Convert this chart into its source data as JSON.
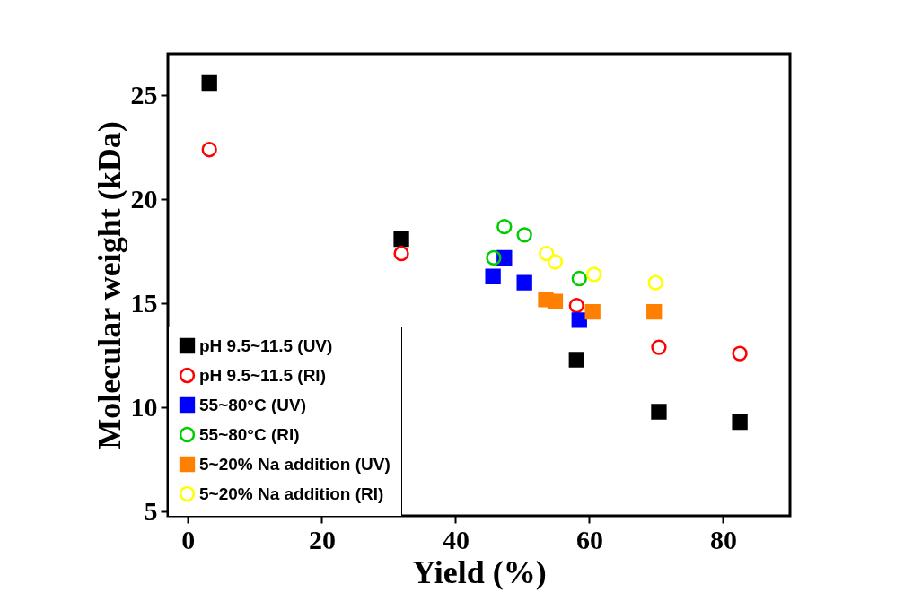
{
  "chart_data": {
    "type": "scatter",
    "xlabel": "Yield (%)",
    "ylabel": "Molecular weight (kDa)",
    "xlim": [
      -3,
      90
    ],
    "ylim": [
      4.8,
      27
    ],
    "xticks": [
      0,
      20,
      40,
      60,
      80
    ],
    "yticks": [
      5,
      10,
      15,
      20,
      25
    ],
    "grid": false,
    "legend": "bottom left",
    "series": [
      {
        "name": "pH 9.5~11.5 (UV)",
        "color": "#000000",
        "marker": "square",
        "x": [
          3.2,
          31.9,
          58.1,
          70.4,
          82.5
        ],
        "values": [
          25.6,
          18.1,
          12.3,
          9.8,
          9.3
        ]
      },
      {
        "name": "pH 9.5~11.5 (RI)",
        "color": "#ff0000",
        "marker": "circle",
        "x": [
          3.2,
          31.9,
          58.1,
          70.4,
          82.5
        ],
        "values": [
          22.4,
          17.4,
          14.9,
          12.9,
          12.6
        ]
      },
      {
        "name": "55~80°C (UV)",
        "color": "#0000ff",
        "marker": "square",
        "x": [
          45.6,
          47.3,
          50.3,
          58.5
        ],
        "values": [
          16.3,
          17.2,
          16.0,
          14.2
        ]
      },
      {
        "name": "55~80°C (RI)",
        "color": "#00cc00",
        "marker": "circle",
        "x": [
          45.7,
          47.3,
          50.3,
          58.5
        ],
        "values": [
          17.2,
          18.7,
          18.3,
          16.2
        ]
      },
      {
        "name": "5~20% Na addition (UV)",
        "color": "#ff8000",
        "marker": "square",
        "x": [
          53.5,
          54.9,
          60.5,
          69.7
        ],
        "values": [
          15.2,
          15.1,
          14.6,
          14.6
        ]
      },
      {
        "name": "5~20% Na addition (RI)",
        "color": "#ffff00",
        "marker": "circle",
        "x": [
          53.6,
          54.9,
          60.7,
          69.9
        ],
        "values": [
          17.4,
          17.0,
          16.4,
          16.0
        ]
      }
    ]
  }
}
